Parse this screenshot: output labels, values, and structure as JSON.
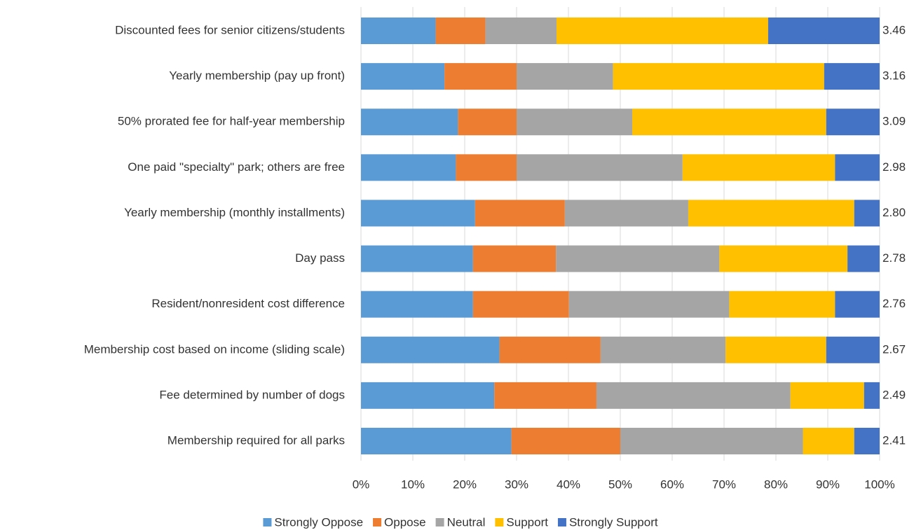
{
  "chart_data": {
    "type": "stacked-barh",
    "categories": [
      "Discounted fees for senior citizens/students",
      "Yearly membership (pay up front)",
      "50% prorated fee for half-year membership",
      "One paid \"specialty\" park; others are free",
      "Yearly membership (monthly installments)",
      "Day pass",
      "Resident/nonresident cost difference",
      "Membership cost based on income (sliding scale)",
      "Fee determined by number of dogs",
      "Membership required for all parks"
    ],
    "series": [
      {
        "name": "Strongly Oppose",
        "color": "#5b9bd5",
        "values": [
          14.4,
          16.1,
          18.7,
          18.3,
          22,
          21.6,
          21.6,
          26.7,
          25.7,
          29
        ]
      },
      {
        "name": "Oppose",
        "color": "#ed7d31",
        "values": [
          9.6,
          13.9,
          11.3,
          11.7,
          17.3,
          16,
          18.5,
          19.5,
          19.7,
          21
        ]
      },
      {
        "name": "Neutral",
        "color": "#a5a5a5",
        "values": [
          13.7,
          18.6,
          22.3,
          32,
          23.8,
          31.5,
          30.9,
          24.1,
          37.4,
          35.2
        ]
      },
      {
        "name": "Support",
        "color": "#ffc000",
        "values": [
          40.8,
          40.7,
          37.4,
          29.4,
          32,
          24.7,
          20.4,
          19.4,
          14.2,
          9.9
        ]
      },
      {
        "name": "Strongly Support",
        "color": "#4472c4",
        "values": [
          21.5,
          10.7,
          10.3,
          8.6,
          4.9,
          6.2,
          8.6,
          10.3,
          3,
          4.9
        ]
      }
    ],
    "row_annotations": [
      "3.46",
      "3.16",
      "3.09",
      "2.98",
      "2.80",
      "2.78",
      "2.76",
      "2.67",
      "2.49",
      "2.41"
    ],
    "xlim": [
      0,
      100
    ],
    "xticks": [
      {
        "value": 0,
        "label": "0%"
      },
      {
        "value": 10,
        "label": "10%"
      },
      {
        "value": 20,
        "label": "20%"
      },
      {
        "value": 30,
        "label": "30%"
      },
      {
        "value": 40,
        "label": "40%"
      },
      {
        "value": 50,
        "label": "50%"
      },
      {
        "value": 60,
        "label": "60%"
      },
      {
        "value": 70,
        "label": "70%"
      },
      {
        "value": 80,
        "label": "80%"
      },
      {
        "value": 90,
        "label": "90%"
      },
      {
        "value": 100,
        "label": "100%"
      }
    ],
    "grid": true,
    "legend": "bottom"
  }
}
